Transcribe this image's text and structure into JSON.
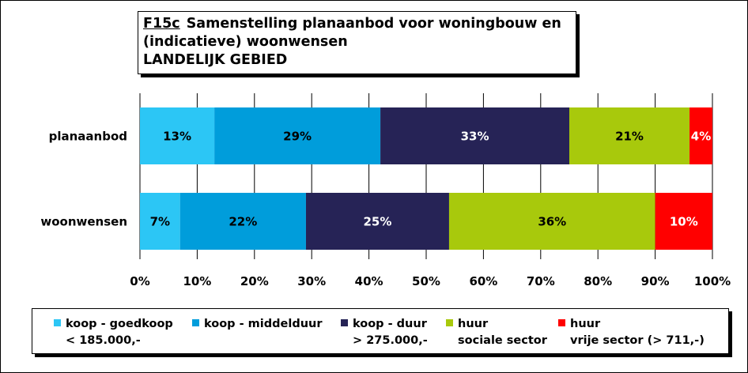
{
  "title": {
    "code": "F15c",
    "line1": "Samenstelling planaanbod voor woningbouw en",
    "line2": "(indicatieve) woonwensen",
    "line3": "LANDELIJK GEBIED"
  },
  "chart_data": {
    "type": "bar",
    "orientation": "horizontal",
    "stacked": true,
    "categories": [
      "planaanbod",
      "woonwensen"
    ],
    "series": [
      {
        "name": "koop - goedkoop < 185.000,-",
        "values": [
          13,
          7
        ],
        "color": "#2CC6F5"
      },
      {
        "name": "koop - middelduur",
        "values": [
          29,
          22
        ],
        "color": "#009DDB"
      },
      {
        "name": "koop - duur > 275.000,-",
        "values": [
          33,
          25
        ],
        "color": "#262356"
      },
      {
        "name": "huur sociale sector",
        "values": [
          21,
          36
        ],
        "color": "#A8C90C"
      },
      {
        "name": "huur vrije sector (> 711,-)",
        "values": [
          4,
          10
        ],
        "color": "#FF0000"
      }
    ],
    "data_labels": [
      [
        "13%",
        "29%",
        "33%",
        "21%",
        "4%"
      ],
      [
        "7%",
        "22%",
        "25%",
        "36%",
        "10%"
      ]
    ],
    "xlim": [
      0,
      100
    ],
    "xticks": [
      "0%",
      "10%",
      "20%",
      "30%",
      "40%",
      "50%",
      "60%",
      "70%",
      "80%",
      "90%",
      "100%"
    ],
    "grid": true,
    "legend_position": "bottom"
  },
  "legend": [
    {
      "line1": "koop - goedkoop",
      "line2": "< 185.000,-",
      "color": "#2CC6F5"
    },
    {
      "line1": "koop - middelduur",
      "line2": "",
      "color": "#009DDB"
    },
    {
      "line1": "koop - duur",
      "line2": "> 275.000,-",
      "color": "#262356"
    },
    {
      "line1": "huur",
      "line2": "sociale sector",
      "color": "#A8C90C"
    },
    {
      "line1": "huur",
      "line2": "vrije sector (> 711,-)",
      "color": "#FF0000"
    }
  ]
}
